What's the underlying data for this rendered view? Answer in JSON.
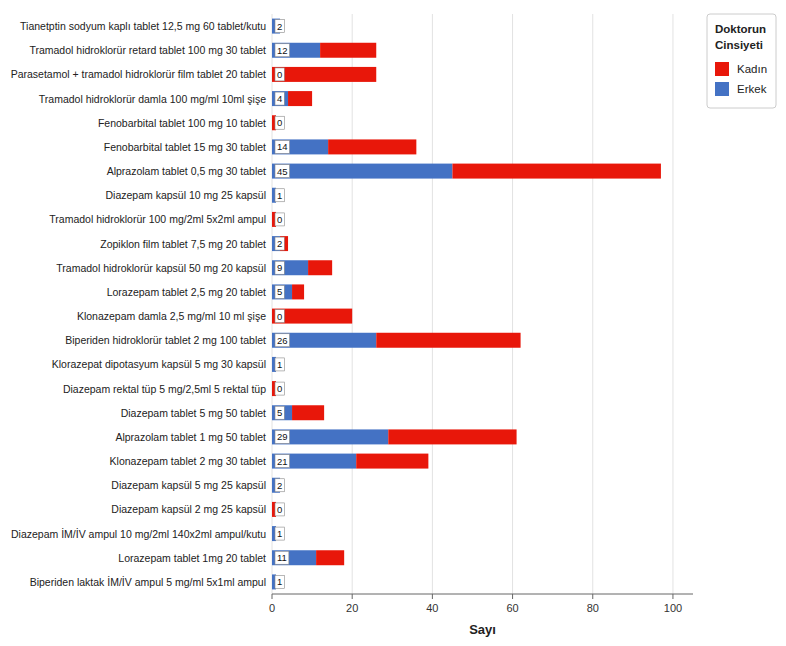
{
  "chart_data": {
    "type": "bar",
    "orientation": "horizontal",
    "stacked": true,
    "x_label": "Sayı",
    "legend_title": "Doktorun\nCinsiyeti",
    "legend": "right",
    "grid": true,
    "categories": [
      "Tianetptin sodyum kaplı tablet 12,5 mg 60 tablet/kutu",
      "Tramadol hidroklorür retard tablet 100 mg 30 tablet",
      "Parasetamol + tramadol hidroklorür film tablet 20 tablet",
      "Tramadol hidroklorür damla 100 mg/ml 10ml şişe",
      "Fenobarbital tablet 100 mg 10 tablet",
      "Fenobarbital tablet 15 mg 30 tablet",
      "Alprazolam tablet 0,5 mg 30 tablet",
      "Diazepam kapsül 10 mg 25 kapsül",
      "Tramadol hidroklorür 100 mg/2ml 5x2ml ampul",
      "Zopiklon film tablet 7,5 mg 20 tablet",
      "Tramadol hidroklorür kapsül 50 mg 20 kapsül",
      "Lorazepam tablet 2,5 mg 20 tablet",
      "Klonazepam damla 2,5 mg/ml 10 ml şişe",
      "Biperiden hidroklorür tablet 2 mg 100 tablet",
      "Klorazepat dipotasyum kapsül 5 mg 30 kapsül",
      "Diazepam rektal tüp 5 mg/2,5ml 5 rektal tüp",
      "Diazepam tablet 5 mg 50 tablet",
      "Alprazolam tablet 1 mg 50 tablet",
      "Klonazepam tablet 2 mg 30 tablet",
      "Diazepam kapsül 5 mg 25 kapsül",
      "Diazepam kapsül 2 mg 25 kapsül",
      "Diazepam İM/İV ampul 10 mg/2ml 140x2ml ampul/kutu",
      "Lorazepam tablet 1mg 20 tablet",
      "Biperiden laktak İM/İV ampul 5 mg/ml 5x1ml ampul"
    ],
    "series": [
      {
        "name": "Erkek",
        "color": "#4472C4",
        "data_labels": true,
        "values": [
          2,
          12,
          0,
          4,
          0,
          14,
          45,
          1,
          0,
          2,
          9,
          5,
          0,
          26,
          1,
          0,
          5,
          29,
          21,
          2,
          0,
          1,
          11,
          1
        ]
      },
      {
        "name": "Kadın",
        "color": "#E8170A",
        "values": [
          0,
          14,
          26,
          6,
          1,
          22,
          52,
          0,
          1,
          2,
          6,
          3,
          20,
          36,
          0,
          1,
          8,
          32,
          18,
          0,
          1,
          0,
          7,
          0
        ]
      }
    ],
    "xlim": [
      0,
      105
    ],
    "xticks": [
      0,
      20,
      40,
      60,
      80,
      100
    ]
  }
}
